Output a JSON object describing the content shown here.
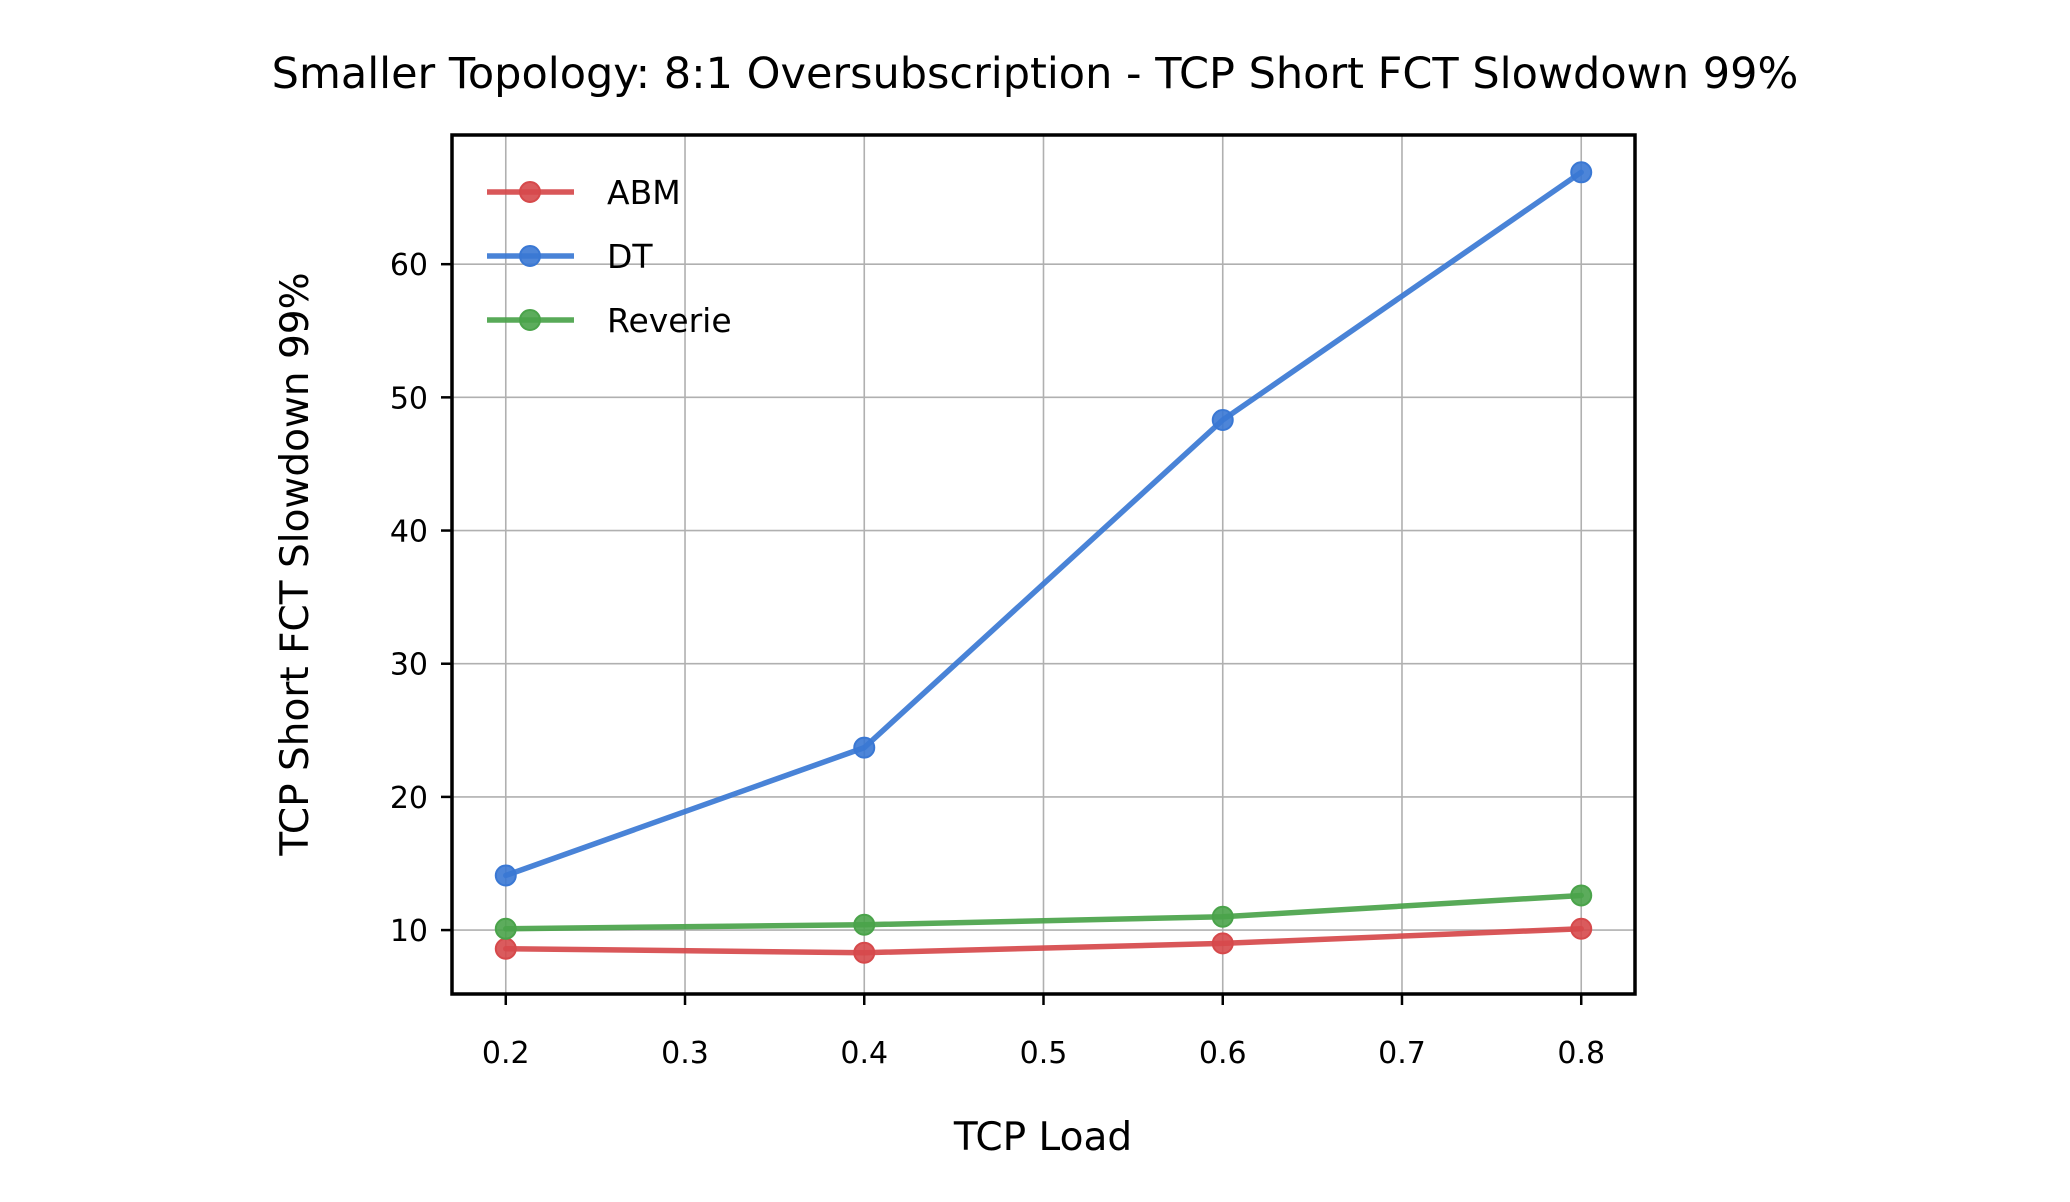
{
  "chart_data": {
    "type": "line",
    "title": "Smaller Topology: 8:1 Oversubscription - TCP Short FCT Slowdown 99%",
    "xlabel": "TCP Load",
    "ylabel": "TCP Short FCT Slowdown 99%",
    "x": [
      0.2,
      0.4,
      0.6,
      0.8
    ],
    "xticks": [
      "0.2",
      "0.3",
      "0.4",
      "0.5",
      "0.6",
      "0.7",
      "0.8"
    ],
    "yticks": [
      "10",
      "20",
      "30",
      "40",
      "50",
      "60"
    ],
    "xlim": [
      0.17,
      0.83
    ],
    "ylim": [
      5.2,
      69.7
    ],
    "grid": true,
    "legend_position": "top-left",
    "series": [
      {
        "name": "ABM",
        "color": "#d6494b",
        "values": [
          8.6,
          8.3,
          9.0,
          10.1
        ]
      },
      {
        "name": "DT",
        "color": "#3a78d4",
        "values": [
          14.1,
          23.7,
          48.3,
          66.9
        ]
      },
      {
        "name": "Reverie",
        "color": "#4aa34a",
        "values": [
          10.1,
          10.4,
          11.0,
          12.6
        ]
      }
    ]
  }
}
